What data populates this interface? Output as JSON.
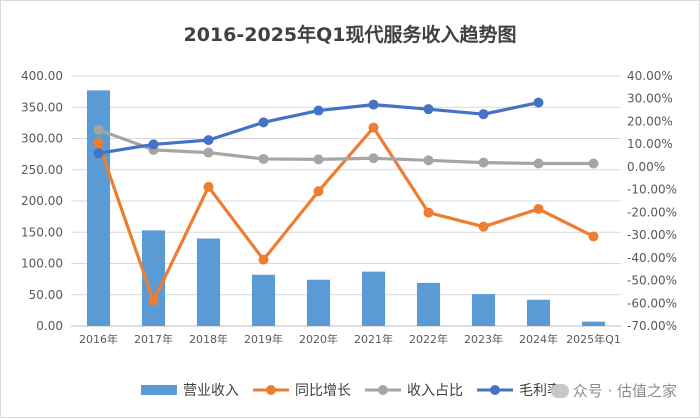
{
  "chart_data": {
    "type": "bar+line",
    "title": "2016-2025年Q1现代服务收入趋势图",
    "categories": [
      "2016年",
      "2017年",
      "2018年",
      "2019年",
      "2020年",
      "2021年",
      "2022年",
      "2023年",
      "2024年",
      "2025年Q1"
    ],
    "left_axis": {
      "ylim": [
        0,
        400
      ],
      "ticks": [
        "0.00",
        "50.00",
        "100.00",
        "150.00",
        "200.00",
        "250.00",
        "300.00",
        "350.00",
        "400.00"
      ]
    },
    "right_axis": {
      "ylim": [
        -70,
        40
      ],
      "ticks": [
        "-70.00%",
        "-60.00%",
        "-50.00%",
        "-40.00%",
        "-30.00%",
        "-20.00%",
        "-10.00%",
        "0.00%",
        "10.00%",
        "20.00%",
        "30.00%",
        "40.00%"
      ]
    },
    "series": [
      {
        "name": "营业收入",
        "kind": "bar",
        "axis": "left",
        "color": "#5b9bd5",
        "values": [
          377,
          153,
          140,
          82,
          74,
          87,
          69,
          51,
          42,
          7
        ]
      },
      {
        "name": "同比增长",
        "kind": "line",
        "axis": "right",
        "color": "#ed7d31",
        "values": [
          10.5,
          -58.9,
          -8.8,
          -40.8,
          -10.7,
          17.3,
          -20.1,
          -26.3,
          -18.5,
          -30.6
        ]
      },
      {
        "name": "收入占比",
        "kind": "line",
        "axis": "right",
        "color": "#a5a5a5",
        "values": [
          16.3,
          7.5,
          6.3,
          3.5,
          3.3,
          3.8,
          2.9,
          1.9,
          1.5,
          1.5
        ]
      },
      {
        "name": "毛利率",
        "kind": "line",
        "axis": "right",
        "color": "#4472c4",
        "values": [
          6.0,
          9.9,
          11.8,
          19.6,
          24.8,
          27.4,
          25.4,
          23.2,
          28.3,
          null
        ]
      }
    ],
    "legend_position": "bottom"
  },
  "watermark": {
    "text": "众号 · 估值之家"
  }
}
